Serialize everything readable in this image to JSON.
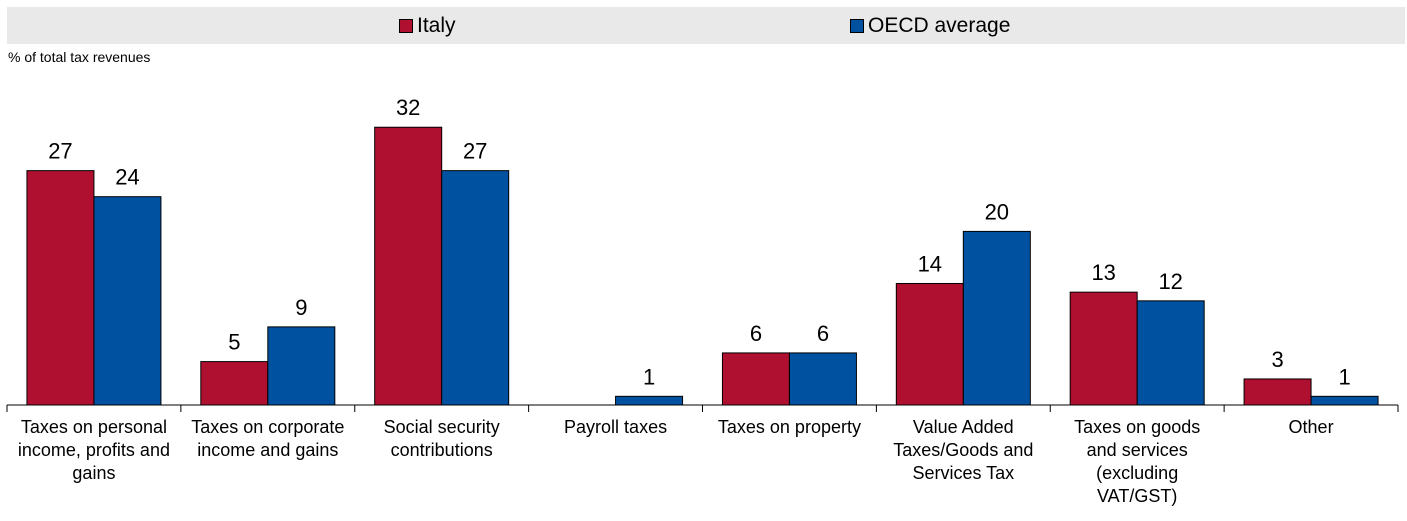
{
  "legend": {
    "italy": "Italy",
    "oecd": "OECD average"
  },
  "unit_label": "% of total tax revenues",
  "colors": {
    "italy": "#b01030",
    "oecd": "#0051a0"
  },
  "chart_data": {
    "type": "bar",
    "categories": [
      [
        "Taxes on personal",
        "income, profits and",
        "gains"
      ],
      [
        "Taxes on corporate",
        "income and gains"
      ],
      [
        "Social security",
        "contributions"
      ],
      [
        "Payroll taxes"
      ],
      [
        "Taxes on property"
      ],
      [
        "Value Added",
        "Taxes/Goods and",
        "Services Tax"
      ],
      [
        "Taxes on goods",
        "and services",
        "(excluding",
        "VAT/GST)"
      ],
      [
        "Other"
      ]
    ],
    "series": [
      {
        "name": "Italy",
        "values": [
          27,
          5,
          32,
          null,
          6,
          14,
          13,
          3
        ]
      },
      {
        "name": "OECD average",
        "values": [
          24,
          9,
          27,
          1,
          6,
          20,
          12,
          1
        ]
      }
    ],
    "ylabel": "% of total tax revenues",
    "ylim": [
      0,
      32
    ],
    "grid": false,
    "legend_position": "top"
  }
}
